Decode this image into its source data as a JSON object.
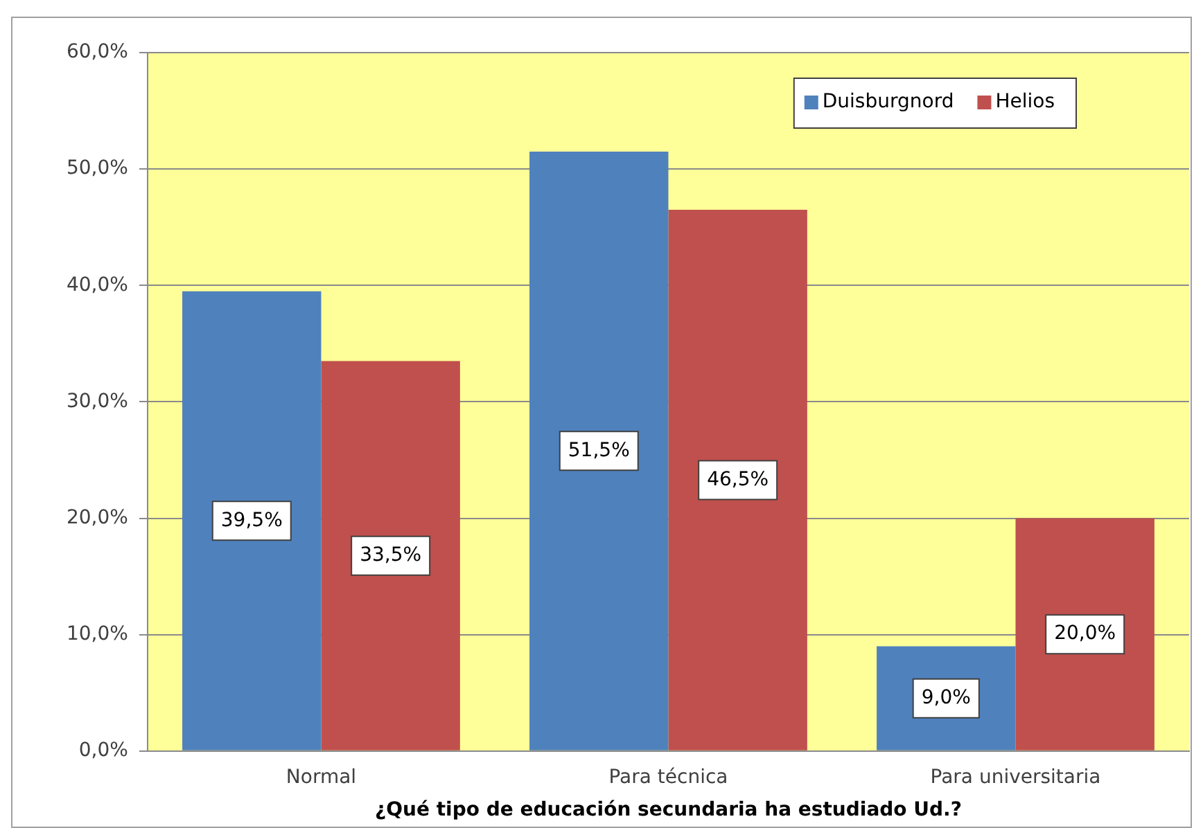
{
  "chart_data": {
    "type": "bar",
    "xlabel": "¿Qué tipo de educación secundaria ha estudiado Ud.?",
    "categories": [
      "Normal",
      "Para técnica",
      "Para universitaria"
    ],
    "series": [
      {
        "name": "Duisburgnord",
        "color": "#4f81bd",
        "values": [
          39.5,
          51.5,
          9.0
        ],
        "value_labels": [
          "39,5%",
          "51,5%",
          "9,0%"
        ]
      },
      {
        "name": "Helios",
        "color": "#c0504d",
        "values": [
          33.5,
          46.5,
          20.0
        ],
        "value_labels": [
          "33,5%",
          "46,5%",
          "20,0%"
        ]
      }
    ],
    "ylim": [
      0,
      60
    ],
    "yticks": [
      {
        "value": 0,
        "label": "0,0%"
      },
      {
        "value": 10,
        "label": "10,0%"
      },
      {
        "value": 20,
        "label": "20,0%"
      },
      {
        "value": 30,
        "label": "30,0%"
      },
      {
        "value": 40,
        "label": "40,0%"
      },
      {
        "value": 50,
        "label": "50,0%"
      },
      {
        "value": 60,
        "label": "60,0%"
      }
    ],
    "grid": "y",
    "legend": "top right"
  }
}
